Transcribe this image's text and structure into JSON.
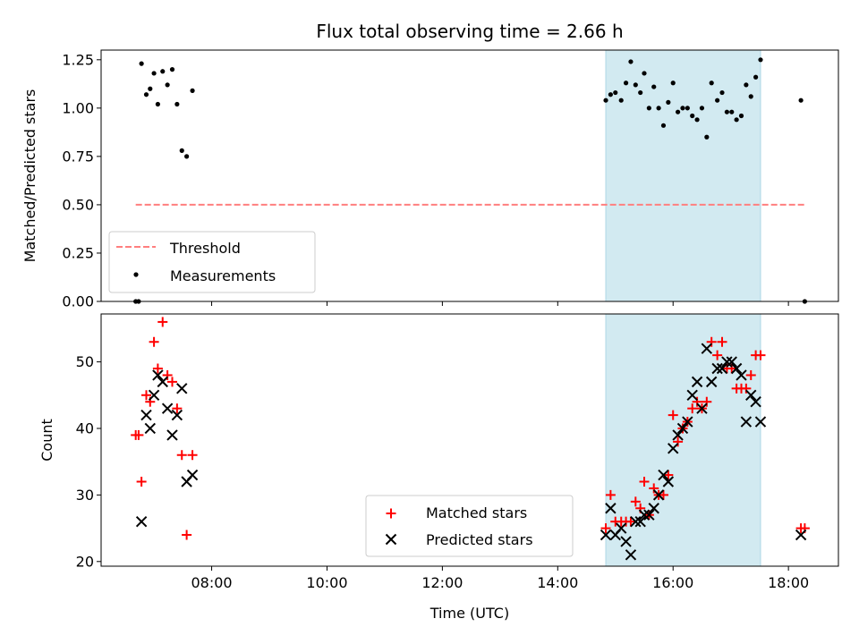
{
  "chart_data": [
    {
      "type": "scatter",
      "title": "Flux total observing time = 2.66 h",
      "xlabel": "",
      "ylabel": "Matched/Predicted stars",
      "ylim": [
        0,
        1.3
      ],
      "yticks": [
        "0.00",
        "0.25",
        "0.50",
        "0.75",
        "1.00",
        "1.25"
      ],
      "highlight_span": {
        "start": "14:50",
        "end": "17:31",
        "color": "#add8e6"
      },
      "threshold": {
        "name": "Threshold",
        "y": 0.5,
        "x_start": "06:41",
        "x_end": "18:17",
        "color": "#ff7f7f",
        "style": "dashed"
      },
      "legend_position": "lower-left",
      "series": [
        {
          "name": "Measurements",
          "marker": "dot",
          "color": "#000000",
          "points": [
            [
              "06:41",
              0.0
            ],
            [
              "06:44",
              0.0
            ],
            [
              "06:47",
              1.23
            ],
            [
              "06:52",
              1.07
            ],
            [
              "06:56",
              1.1
            ],
            [
              "07:00",
              1.18
            ],
            [
              "07:04",
              1.02
            ],
            [
              "07:09",
              1.19
            ],
            [
              "07:14",
              1.12
            ],
            [
              "07:19",
              1.2
            ],
            [
              "07:24",
              1.02
            ],
            [
              "07:29",
              0.78
            ],
            [
              "07:34",
              0.75
            ],
            [
              "07:40",
              1.09
            ],
            [
              "14:50",
              1.04
            ],
            [
              "14:55",
              1.07
            ],
            [
              "15:00",
              1.08
            ],
            [
              "15:06",
              1.04
            ],
            [
              "15:11",
              1.13
            ],
            [
              "15:16",
              1.24
            ],
            [
              "15:21",
              1.12
            ],
            [
              "15:26",
              1.08
            ],
            [
              "15:30",
              1.18
            ],
            [
              "15:35",
              1.0
            ],
            [
              "15:40",
              1.11
            ],
            [
              "15:45",
              1.0
            ],
            [
              "15:50",
              0.91
            ],
            [
              "15:55",
              1.03
            ],
            [
              "16:00",
              1.13
            ],
            [
              "16:05",
              0.98
            ],
            [
              "16:10",
              1.0
            ],
            [
              "16:15",
              1.0
            ],
            [
              "16:20",
              0.96
            ],
            [
              "16:25",
              0.94
            ],
            [
              "16:30",
              1.0
            ],
            [
              "16:35",
              0.85
            ],
            [
              "16:40",
              1.13
            ],
            [
              "16:46",
              1.04
            ],
            [
              "16:51",
              1.08
            ],
            [
              "16:56",
              0.98
            ],
            [
              "17:01",
              0.98
            ],
            [
              "17:06",
              0.94
            ],
            [
              "17:11",
              0.96
            ],
            [
              "17:16",
              1.12
            ],
            [
              "17:21",
              1.06
            ],
            [
              "17:26",
              1.16
            ],
            [
              "17:31",
              1.25
            ],
            [
              "18:13",
              1.04
            ],
            [
              "18:17",
              0.0
            ]
          ]
        }
      ]
    },
    {
      "type": "scatter",
      "title": "",
      "xlabel": "Time (UTC)",
      "ylabel": "Count",
      "ylim": [
        19.3,
        57.2
      ],
      "yticks": [
        "20",
        "30",
        "40",
        "50"
      ],
      "xticks": [
        "08:00",
        "10:00",
        "12:00",
        "14:00",
        "16:00",
        "18:00"
      ],
      "highlight_span": {
        "start": "14:50",
        "end": "17:31",
        "color": "#add8e6"
      },
      "legend_position": "lower-center",
      "series": [
        {
          "name": "Matched stars",
          "marker": "plus",
          "color": "#ff0000",
          "points": [
            [
              "06:41",
              39
            ],
            [
              "06:44",
              39
            ],
            [
              "06:47",
              32
            ],
            [
              "06:52",
              45
            ],
            [
              "06:56",
              44
            ],
            [
              "07:00",
              53
            ],
            [
              "07:04",
              49
            ],
            [
              "07:09",
              56
            ],
            [
              "07:14",
              48
            ],
            [
              "07:19",
              47
            ],
            [
              "07:24",
              43
            ],
            [
              "07:29",
              36
            ],
            [
              "07:34",
              24
            ],
            [
              "07:40",
              36
            ],
            [
              "14:50",
              25
            ],
            [
              "14:55",
              30
            ],
            [
              "15:00",
              26
            ],
            [
              "15:06",
              26
            ],
            [
              "15:11",
              26
            ],
            [
              "15:16",
              26
            ],
            [
              "15:21",
              29
            ],
            [
              "15:26",
              28
            ],
            [
              "15:30",
              32
            ],
            [
              "15:35",
              27
            ],
            [
              "15:40",
              31
            ],
            [
              "15:45",
              30
            ],
            [
              "15:50",
              30
            ],
            [
              "15:55",
              33
            ],
            [
              "16:00",
              42
            ],
            [
              "16:05",
              38
            ],
            [
              "16:10",
              40
            ],
            [
              "16:15",
              41
            ],
            [
              "16:20",
              43
            ],
            [
              "16:25",
              44
            ],
            [
              "16:30",
              43
            ],
            [
              "16:35",
              44
            ],
            [
              "16:40",
              53
            ],
            [
              "16:46",
              51
            ],
            [
              "16:51",
              53
            ],
            [
              "16:56",
              49
            ],
            [
              "17:01",
              49
            ],
            [
              "17:06",
              46
            ],
            [
              "17:11",
              46
            ],
            [
              "17:16",
              46
            ],
            [
              "17:21",
              48
            ],
            [
              "17:26",
              51
            ],
            [
              "17:31",
              51
            ],
            [
              "18:13",
              25
            ],
            [
              "18:17",
              25
            ]
          ]
        },
        {
          "name": "Predicted stars",
          "marker": "x",
          "color": "#000000",
          "points": [
            [
              "06:47",
              26
            ],
            [
              "06:52",
              42
            ],
            [
              "06:56",
              40
            ],
            [
              "07:00",
              45
            ],
            [
              "07:04",
              48
            ],
            [
              "07:09",
              47
            ],
            [
              "07:14",
              43
            ],
            [
              "07:19",
              39
            ],
            [
              "07:24",
              42
            ],
            [
              "07:29",
              46
            ],
            [
              "07:34",
              32
            ],
            [
              "07:40",
              33
            ],
            [
              "14:50",
              24
            ],
            [
              "14:55",
              28
            ],
            [
              "15:00",
              24
            ],
            [
              "15:06",
              25
            ],
            [
              "15:11",
              23
            ],
            [
              "15:16",
              21
            ],
            [
              "15:21",
              26
            ],
            [
              "15:26",
              26
            ],
            [
              "15:30",
              27
            ],
            [
              "15:35",
              27
            ],
            [
              "15:40",
              28
            ],
            [
              "15:45",
              30
            ],
            [
              "15:50",
              33
            ],
            [
              "15:55",
              32
            ],
            [
              "16:00",
              37
            ],
            [
              "16:05",
              39
            ],
            [
              "16:10",
              40
            ],
            [
              "16:15",
              41
            ],
            [
              "16:20",
              45
            ],
            [
              "16:25",
              47
            ],
            [
              "16:30",
              43
            ],
            [
              "16:35",
              52
            ],
            [
              "16:40",
              47
            ],
            [
              "16:46",
              49
            ],
            [
              "16:51",
              49
            ],
            [
              "16:56",
              50
            ],
            [
              "17:01",
              50
            ],
            [
              "17:06",
              49
            ],
            [
              "17:11",
              48
            ],
            [
              "17:16",
              41
            ],
            [
              "17:21",
              45
            ],
            [
              "17:26",
              44
            ],
            [
              "17:31",
              41
            ],
            [
              "18:13",
              24
            ]
          ]
        }
      ]
    }
  ]
}
